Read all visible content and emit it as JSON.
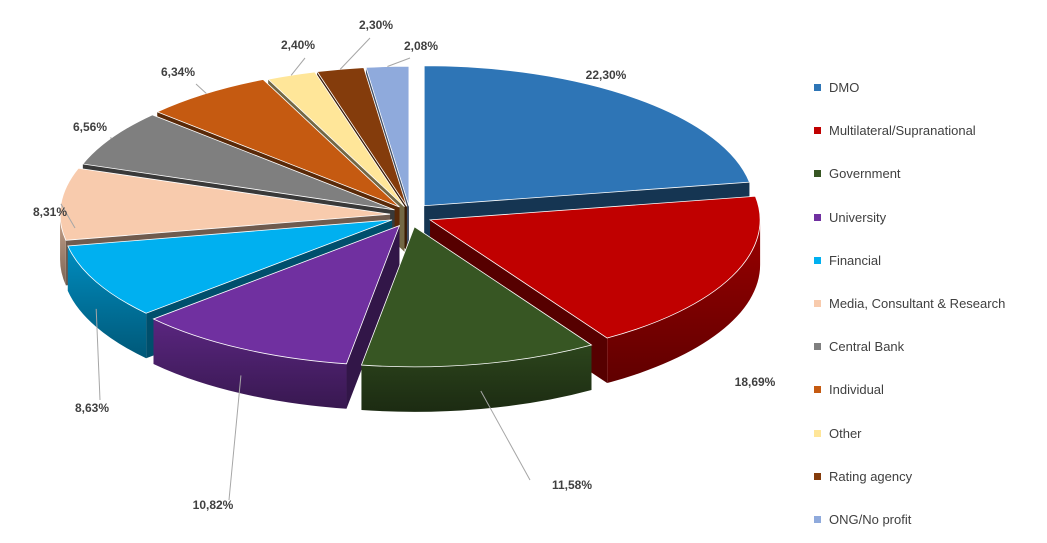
{
  "chart_data": {
    "type": "pie",
    "title": "",
    "legend_position": "right",
    "slices": [
      {
        "label": "DMO",
        "value": 22.3,
        "value_label": "22,30%",
        "color": "#2E75B6"
      },
      {
        "label": "Multilateral/Supranational",
        "value": 18.69,
        "value_label": "18,69%",
        "color": "#C00000"
      },
      {
        "label": "Government",
        "value": 11.58,
        "value_label": "11,58%",
        "color": "#375623"
      },
      {
        "label": "University",
        "value": 10.82,
        "value_label": "10,82%",
        "color": "#7030A0"
      },
      {
        "label": "Financial",
        "value": 8.63,
        "value_label": "8,63%",
        "color": "#00B0F0"
      },
      {
        "label": "Media, Consultant & Research",
        "value": 8.31,
        "value_label": "8,31%",
        "color": "#F8CBAD"
      },
      {
        "label": "Central Bank",
        "value": 6.56,
        "value_label": "6,56%",
        "color": "#7F7F7F"
      },
      {
        "label": "Individual",
        "value": 6.34,
        "value_label": "6,34%",
        "color": "#C55A11"
      },
      {
        "label": "Other",
        "value": 2.4,
        "value_label": "2,40%",
        "color": "#FFE699"
      },
      {
        "label": "Rating agency",
        "value": 2.3,
        "value_label": "2,30%",
        "color": "#843C0C"
      },
      {
        "label": "ONG/No profit",
        "value": 2.08,
        "value_label": "2,08%",
        "color": "#8FAADC"
      }
    ]
  }
}
